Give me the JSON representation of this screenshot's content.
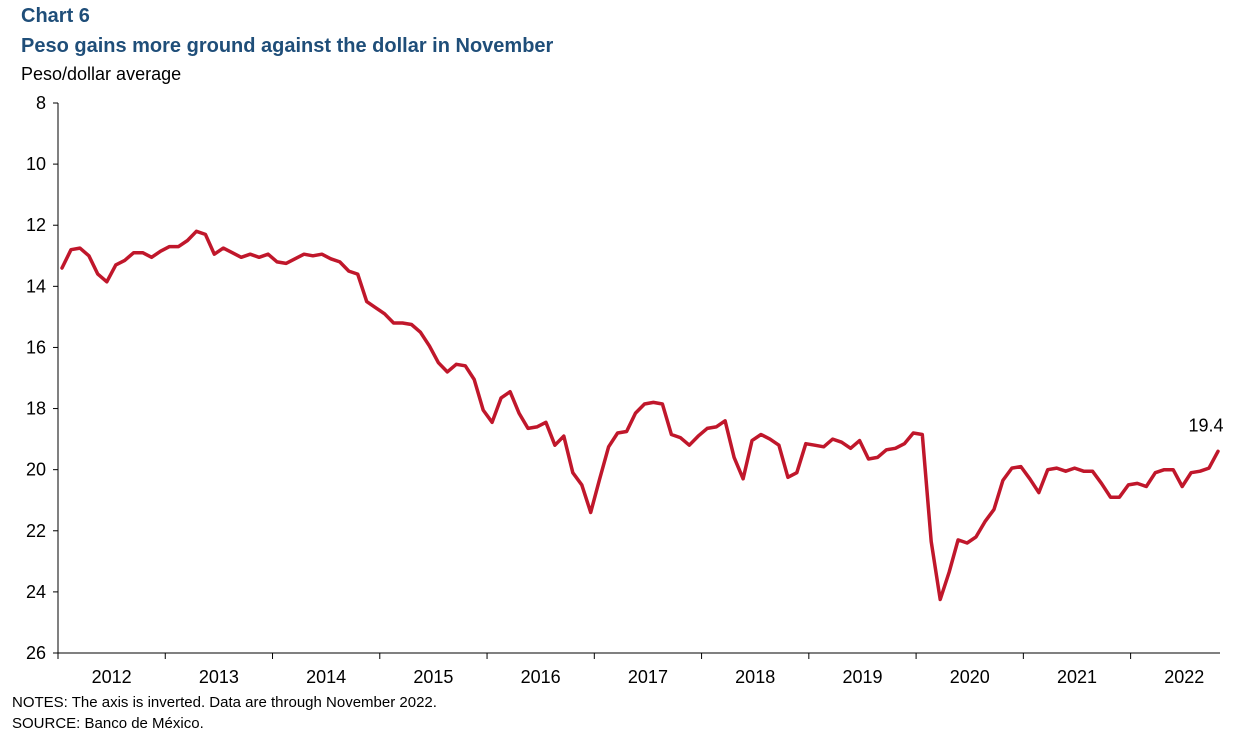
{
  "chart_label": "Chart 6",
  "notes": "NOTES: The axis is inverted. Data are through November 2022.",
  "source": "SOURCE: Banco de México.",
  "chart_data": {
    "type": "line",
    "title": "Peso gains more ground against the dollar in November",
    "ylabel": "Peso/dollar average",
    "xlabel": "",
    "y_inverted": true,
    "ylim": [
      8,
      26
    ],
    "yticks": [
      8,
      10,
      12,
      14,
      16,
      18,
      20,
      22,
      24,
      26
    ],
    "x_tick_labels": [
      "2012",
      "2013",
      "2014",
      "2015",
      "2016",
      "2017",
      "2018",
      "2019",
      "2020",
      "2021",
      "2022"
    ],
    "x_start": "2012-01",
    "x_end": "2022-11",
    "line_color": "#c0172b",
    "annotation": {
      "text": "19.4",
      "at": "last-point"
    },
    "series": [
      {
        "values": [
          13.4,
          12.8,
          12.75,
          13.0,
          13.6,
          13.85,
          13.3,
          13.15,
          12.9,
          12.9,
          13.05,
          12.85,
          12.7,
          12.7,
          12.5,
          12.2,
          12.3,
          12.95,
          12.75,
          12.9,
          13.05,
          12.95,
          13.05,
          12.95,
          13.2,
          13.25,
          13.1,
          12.95,
          13.0,
          12.95,
          13.1,
          13.2,
          13.5,
          13.6,
          14.5,
          14.7,
          14.9,
          15.2,
          15.2,
          15.25,
          15.5,
          15.95,
          16.5,
          16.8,
          16.55,
          16.6,
          17.05,
          18.05,
          18.45,
          17.65,
          17.45,
          18.15,
          18.65,
          18.6,
          18.45,
          19.2,
          18.9,
          20.1,
          20.5,
          21.4,
          20.3,
          19.25,
          18.8,
          18.75,
          18.15,
          17.85,
          17.8,
          17.85,
          18.85,
          18.95,
          19.2,
          18.9,
          18.65,
          18.6,
          18.4,
          19.6,
          20.3,
          19.05,
          18.85,
          19.0,
          19.2,
          20.25,
          20.1,
          19.15,
          19.2,
          19.25,
          19.0,
          19.1,
          19.3,
          19.05,
          19.65,
          19.6,
          19.35,
          19.3,
          19.15,
          18.8,
          18.85,
          22.35,
          24.25,
          23.35,
          22.3,
          22.4,
          22.2,
          21.7,
          21.3,
          20.35,
          19.95,
          19.9,
          20.3,
          20.75,
          20.0,
          19.95,
          20.05,
          19.95,
          20.05,
          20.05,
          20.45,
          20.9,
          20.9,
          20.5,
          20.45,
          20.55,
          20.1,
          20.0,
          20.0,
          20.55,
          20.1,
          20.05,
          19.95,
          19.4
        ]
      }
    ]
  }
}
